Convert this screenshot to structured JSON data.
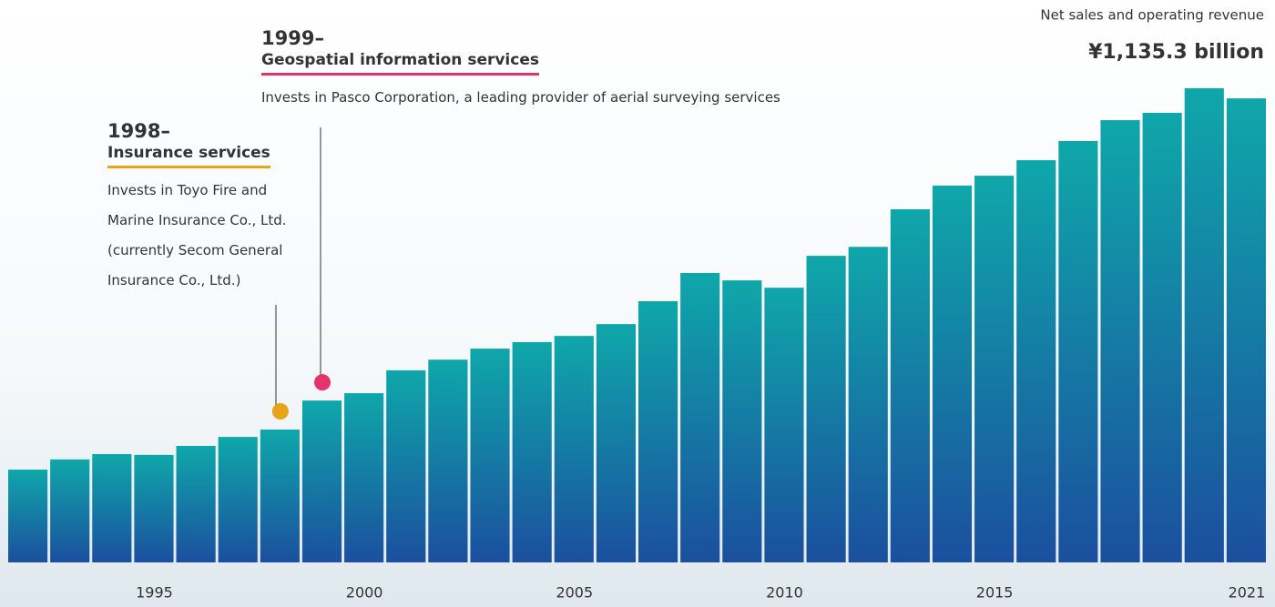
{
  "chart_data": {
    "type": "bar",
    "title": "Net sales and operating revenue",
    "categories": [
      null,
      null,
      null,
      "1995",
      null,
      null,
      null,
      null,
      "2000",
      null,
      null,
      null,
      null,
      "2005",
      null,
      null,
      null,
      null,
      "2010",
      null,
      null,
      null,
      null,
      "2015",
      null,
      null,
      null,
      null,
      null,
      "2021"
    ],
    "values": [
      227,
      252,
      265,
      263,
      285,
      307,
      325,
      396,
      414,
      470,
      496,
      523,
      539,
      554,
      583,
      639,
      708,
      690,
      672,
      750,
      772,
      864,
      922,
      946,
      984,
      1031,
      1082,
      1100,
      1160,
      1135.3
    ],
    "value_labels": [
      null,
      null,
      null,
      null,
      null,
      null,
      null,
      null,
      null,
      null,
      null,
      null,
      null,
      null,
      null,
      null,
      null,
      null,
      null,
      null,
      null,
      null,
      null,
      null,
      null,
      null,
      null,
      null,
      null,
      "¥1,135.3 billion"
    ],
    "colors": [
      "#0fa7aa",
      "#1b4f9e"
    ],
    "annotations": [
      {
        "year": "1998–",
        "heading": "Insurance services",
        "text": "Invests in Toyo Fire and Marine Insurance Co., Ltd. (currently Secom General Insurance Co., Ltd.)",
        "color": "#e8a317"
      },
      {
        "year": "1999–",
        "heading": "Geospatial information services",
        "text": "Invests in Pasco Corporation, a leading provider of aerial surveying services",
        "color": "#e5336b"
      }
    ]
  }
}
